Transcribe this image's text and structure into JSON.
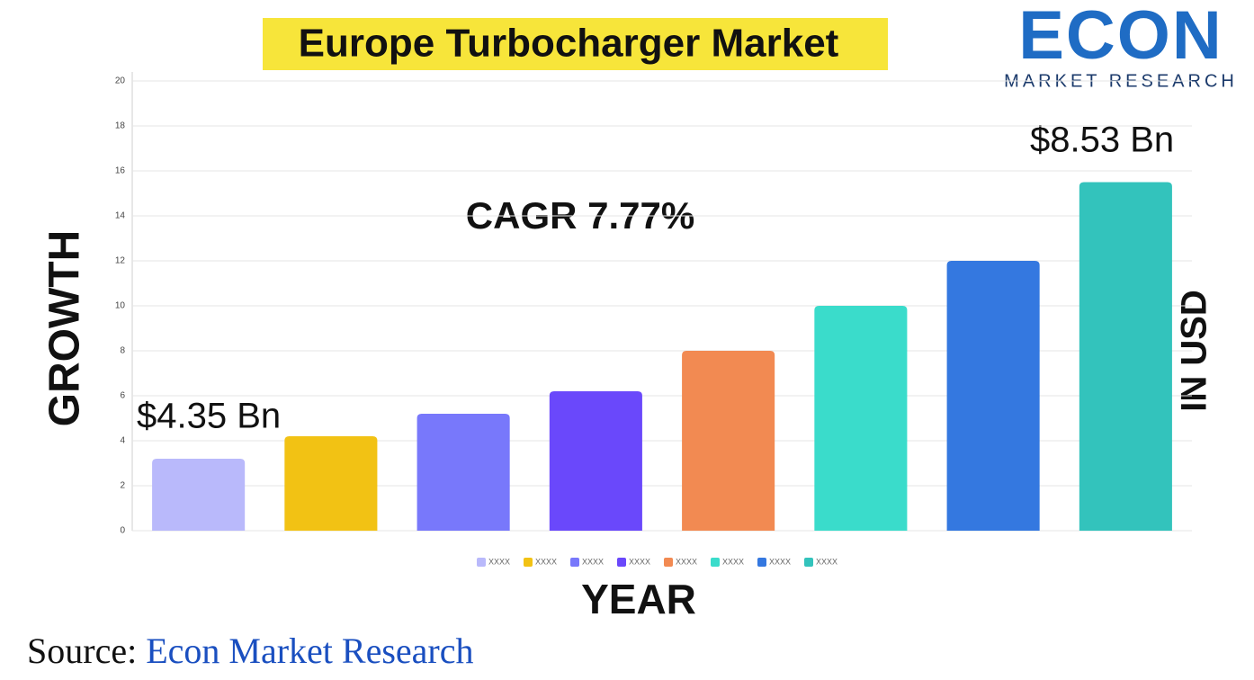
{
  "chart_data": {
    "type": "bar",
    "title": "Europe Turbocharger Market",
    "x_label": "YEAR",
    "y_label": "GROWTH",
    "y2_label": "IN USD",
    "annotations": [
      "$4.35 Bn",
      "$8.53 Bn",
      "CAGR 7.77%"
    ],
    "categories": [
      null,
      null,
      null,
      null,
      null,
      null,
      null,
      null
    ],
    "series": [
      {
        "name": "XXXX",
        "color": "#b9b9fb",
        "values": [
          3.2,
          null,
          null,
          null,
          null,
          null,
          null,
          null
        ]
      },
      {
        "name": "XXXX",
        "color": "#f2c214",
        "values": [
          null,
          4.2,
          null,
          null,
          null,
          null,
          null,
          null
        ]
      },
      {
        "name": "XXXX",
        "color": "#7878fb",
        "values": [
          null,
          null,
          5.2,
          null,
          null,
          null,
          null,
          null
        ]
      },
      {
        "name": "XXXX",
        "color": "#6a48fb",
        "values": [
          null,
          null,
          null,
          6.2,
          null,
          null,
          null,
          null
        ]
      },
      {
        "name": "XXXX",
        "color": "#f28a52",
        "values": [
          null,
          null,
          null,
          null,
          8,
          null,
          null,
          null
        ]
      },
      {
        "name": "XXXX",
        "color": "#3adccb",
        "values": [
          null,
          null,
          null,
          null,
          null,
          10,
          null,
          null
        ]
      },
      {
        "name": "XXXX",
        "color": "#3478e0",
        "values": [
          null,
          null,
          null,
          null,
          null,
          null,
          12,
          null
        ]
      },
      {
        "name": "XXXX",
        "color": "#33c3bc",
        "values": [
          null,
          null,
          null,
          null,
          null,
          null,
          null,
          15.5
        ]
      }
    ],
    "ylim": [
      0,
      20
    ],
    "yticks": [
      0,
      2,
      4,
      6,
      8,
      10,
      12,
      14,
      16,
      18,
      20
    ],
    "grid": true,
    "legend": "bottom"
  },
  "logo": {
    "name": "ECON",
    "tagline": "MARKET RESEARCH"
  },
  "source": {
    "label": "Source:",
    "name": "Econ Market Research"
  }
}
